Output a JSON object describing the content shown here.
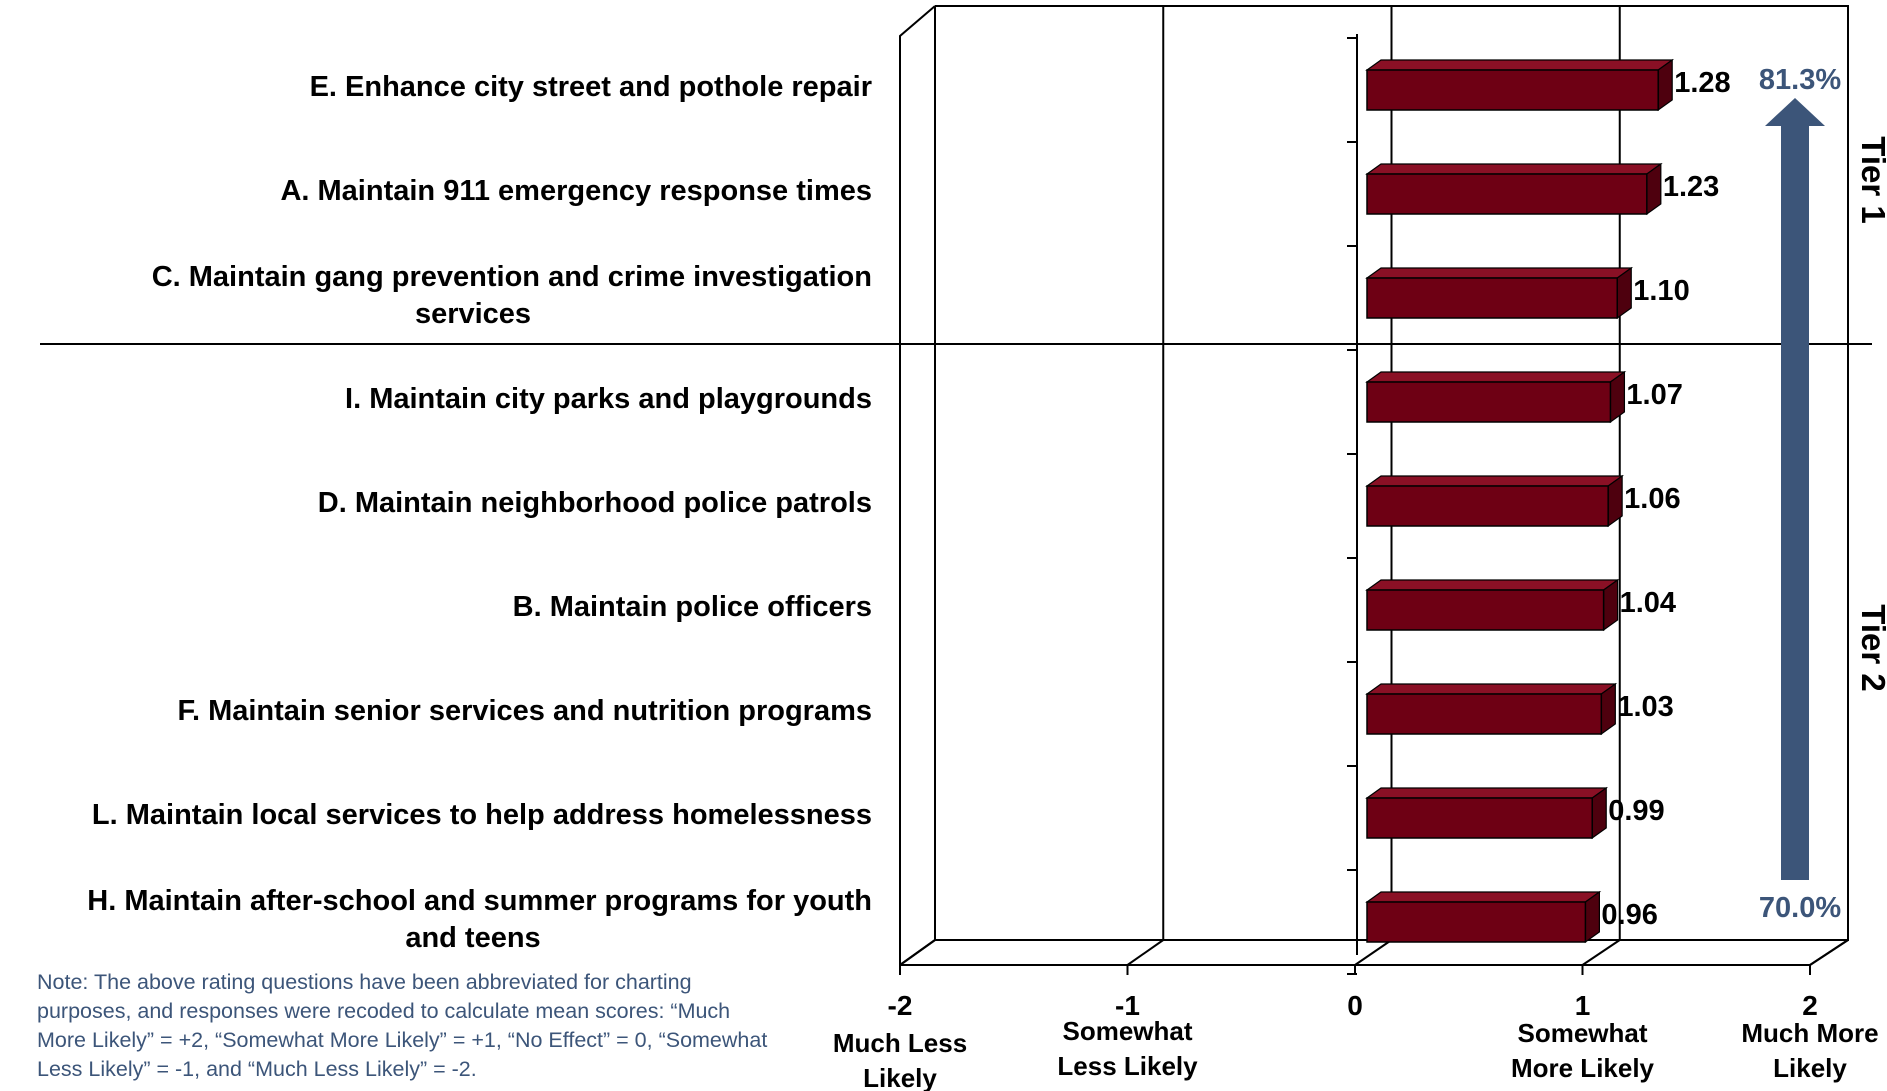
{
  "chart_data": {
    "type": "bar",
    "orientation": "horizontal",
    "categories": [
      "E. Enhance city street and pothole repair",
      "A. Maintain 911 emergency response times",
      "C. Maintain gang prevention and crime investigation services",
      "I. Maintain city parks and playgrounds",
      "D. Maintain neighborhood police patrols",
      "B. Maintain police officers",
      "F. Maintain senior services and nutrition programs",
      "L. Maintain local services to help address homelessness",
      "H. Maintain after-school and summer programs for youth and teens"
    ],
    "category_lines": [
      [
        "E. Enhance city street and pothole repair"
      ],
      [
        "A. Maintain 911 emergency response times"
      ],
      [
        "C. Maintain gang prevention and crime investigation",
        "services"
      ],
      [
        "I. Maintain city parks and playgrounds"
      ],
      [
        "D. Maintain neighborhood police patrols"
      ],
      [
        "B. Maintain police officers"
      ],
      [
        "F. Maintain senior services and nutrition programs"
      ],
      [
        "L. Maintain local services to help address homelessness"
      ],
      [
        "H. Maintain after-school and summer programs for youth",
        "and teens"
      ]
    ],
    "values": [
      1.28,
      1.23,
      1.1,
      1.07,
      1.06,
      1.04,
      1.03,
      0.99,
      0.96
    ],
    "value_labels": [
      "1.28",
      "1.23",
      "1.10",
      "1.07",
      "1.06",
      "1.04",
      "1.03",
      "0.99",
      "0.96"
    ],
    "xlim": [
      -2,
      2
    ],
    "x_ticks": [
      {
        "value": -2,
        "num": "-2",
        "words": [
          "Much Less",
          "Likely"
        ]
      },
      {
        "value": -1,
        "num": "-1",
        "words": [
          "Somewhat",
          "Less Likely"
        ]
      },
      {
        "value": 0,
        "num": "0",
        "words": []
      },
      {
        "value": 1,
        "num": "1",
        "words": [
          "Somewhat",
          "More Likely"
        ]
      },
      {
        "value": 2,
        "num": "2",
        "words": [
          "Much More",
          "Likely"
        ]
      }
    ],
    "grid": true,
    "tiers": [
      {
        "label": "Tier 1",
        "rows": [
          0,
          2
        ]
      },
      {
        "label": "Tier 2",
        "rows": [
          3,
          8
        ]
      }
    ],
    "arrow": {
      "top_label": "81.3%",
      "bottom_label": "70.0%"
    },
    "bar_color": "#6e0014",
    "arrow_color": "#3c5579"
  },
  "note": "Note: The above rating questions have been abbreviated for charting purposes, and responses were recoded to calculate mean scores: “Much More Likely” = +2, “Somewhat More Likely” = +1, “No Effect” = 0, “Somewhat Less Likely” = -1, and “Much Less Likely” = -2."
}
